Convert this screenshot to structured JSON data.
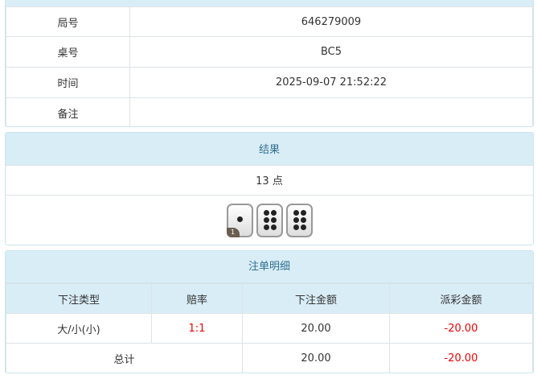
{
  "info": {
    "rows": [
      {
        "label": "局号",
        "value": "646279009"
      },
      {
        "label": "桌号",
        "value": "BC5"
      },
      {
        "label": "时间",
        "value": "2025-09-07 21:52:22"
      },
      {
        "label": "备注",
        "value": ""
      }
    ]
  },
  "result": {
    "title": "结果",
    "points": "13 点",
    "dice": [
      1,
      6,
      6
    ],
    "badge": "1"
  },
  "bets": {
    "title": "注单明细",
    "headers": [
      "下注类型",
      "赔率",
      "下注金额",
      "派彩金额"
    ],
    "rows": [
      {
        "type": "大/小(小)",
        "odds": "1:1",
        "amount": "20.00",
        "payout": "-20.00"
      }
    ],
    "total": {
      "label": "总计",
      "amount": "20.00",
      "payout": "-20.00"
    },
    "colors": {
      "negative": "#e00000",
      "header_bg": "#d9edf7"
    }
  }
}
